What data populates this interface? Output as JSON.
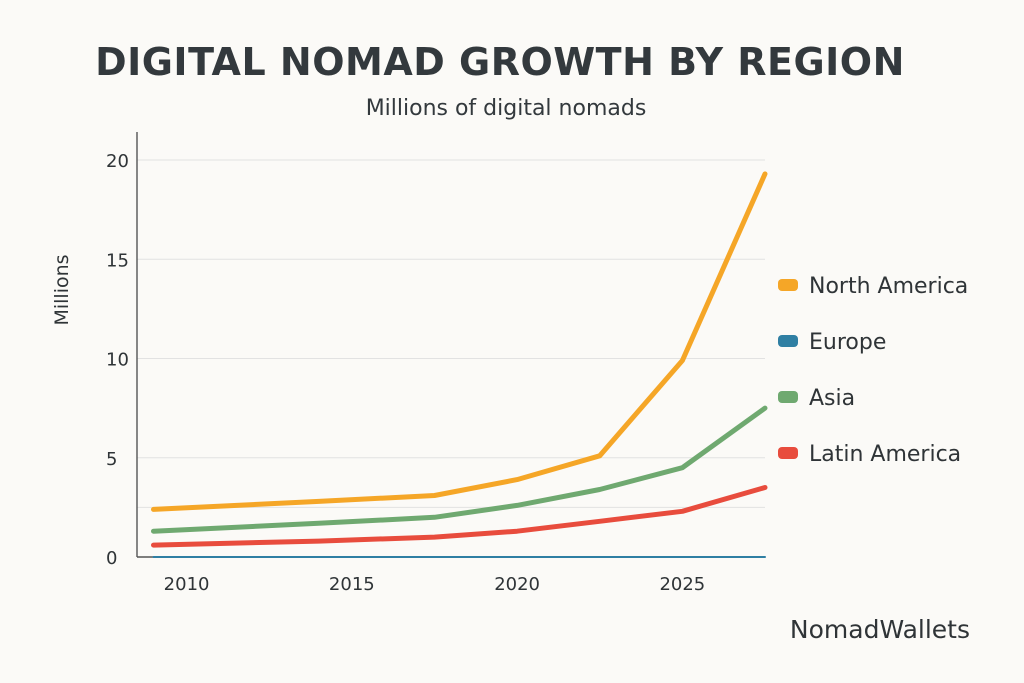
{
  "brand": "NomadWallets",
  "colors": {
    "north_america": "#f5a627",
    "europe": "#2f7fa3",
    "asia": "#6fa970",
    "latin_america": "#e84c3d",
    "grid": "#e2e2e2",
    "axis": "#555555"
  },
  "chart_data": {
    "type": "line",
    "title": "DIGITAL NOMAD GROWTH BY REGION",
    "subtitle": "Millions of digital nomads",
    "ylabel": "Millions",
    "xlabel": "",
    "xlim": [
      2008.5,
      2027.5
    ],
    "ylim": [
      0,
      20
    ],
    "x_ticks": [
      2010,
      2015,
      2020,
      2025
    ],
    "y_ticks": [
      0,
      5,
      10,
      15,
      20
    ],
    "grid": true,
    "legend_position": "right",
    "series": [
      {
        "name": "North America",
        "color": "#f5a627",
        "points": [
          [
            2009,
            2.4
          ],
          [
            2014,
            2.8
          ],
          [
            2017.5,
            3.1
          ],
          [
            2020,
            3.9
          ],
          [
            2022.5,
            5.1
          ],
          [
            2025,
            9.9
          ],
          [
            2027.5,
            19.3
          ]
        ]
      },
      {
        "name": "Europe",
        "color": "#2f7fa3",
        "points": [
          [
            2009,
            0.0
          ],
          [
            2027.5,
            0.0
          ]
        ]
      },
      {
        "name": "Asia",
        "color": "#6fa970",
        "points": [
          [
            2009,
            1.3
          ],
          [
            2014,
            1.7
          ],
          [
            2017.5,
            2.0
          ],
          [
            2020,
            2.6
          ],
          [
            2022.5,
            3.4
          ],
          [
            2025,
            4.5
          ],
          [
            2027.5,
            7.5
          ]
        ]
      },
      {
        "name": "Latin America",
        "color": "#e84c3d",
        "points": [
          [
            2009,
            0.6
          ],
          [
            2014,
            0.8
          ],
          [
            2017.5,
            1.0
          ],
          [
            2020,
            1.3
          ],
          [
            2022.5,
            1.8
          ],
          [
            2025,
            2.3
          ],
          [
            2027.5,
            3.5
          ]
        ]
      }
    ]
  }
}
